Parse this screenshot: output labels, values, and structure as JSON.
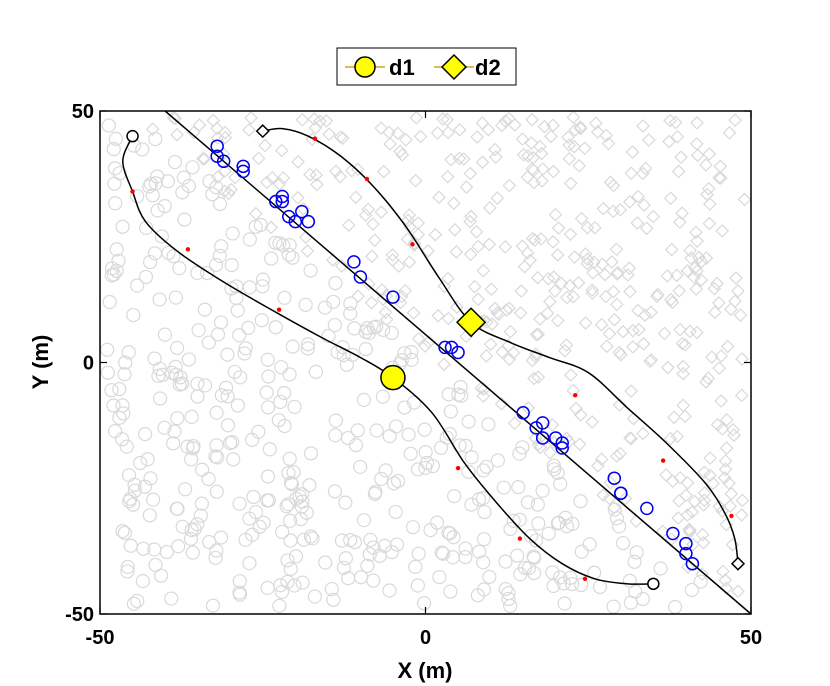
{
  "chart_data": {
    "type": "scatter",
    "xlabel": "X (m)",
    "ylabel": "Y (m)",
    "xlim": [
      -50,
      50
    ],
    "ylim": [
      -50,
      50
    ],
    "x_ticks": [
      -50,
      0,
      50
    ],
    "y_ticks": [
      -50,
      0,
      50
    ],
    "grid": false,
    "legend_position": "top-center, outside plot",
    "legend": [
      {
        "name": "d1",
        "marker": "circle",
        "color": "#ffff00"
      },
      {
        "name": "d2",
        "marker": "diamond",
        "color": "#ffff00"
      }
    ],
    "colors": {
      "background_markers": "#d9d9d9",
      "route_markers": "#0000ee",
      "paths": "#000000",
      "waypoints": "#ff0000",
      "current": "#ffff00"
    },
    "diagonal_line": {
      "x": [
        -40,
        50
      ],
      "y": [
        50,
        -50
      ]
    },
    "route_points": {
      "x": [
        -32,
        -32,
        -31,
        -28,
        -28,
        -23,
        -22,
        -22,
        -21,
        -20,
        -19,
        -18,
        -11,
        -10,
        -5,
        3,
        4,
        5,
        15,
        17,
        18,
        18,
        20,
        21,
        21,
        29,
        30,
        30,
        34,
        38,
        40,
        40,
        41
      ],
      "y": [
        43,
        41,
        40,
        39,
        38,
        32,
        33,
        32,
        29,
        28,
        30,
        28,
        20,
        17,
        13,
        3,
        3,
        2,
        -10,
        -13,
        -12,
        -15,
        -15,
        -16,
        -17,
        -23,
        -26,
        -26,
        -29,
        -34,
        -36,
        -38,
        -40
      ]
    },
    "d1_path": {
      "x": [
        -45,
        -46.5,
        -45,
        -43,
        -38,
        -31,
        -23,
        -16,
        -10,
        -5,
        1,
        6,
        11,
        16,
        21,
        26,
        31,
        35
      ],
      "y": [
        45,
        40,
        34,
        28,
        22,
        16,
        10,
        5,
        1,
        -3,
        -10,
        -20,
        -28,
        -35,
        -40,
        -43,
        -44,
        -44
      ],
      "start": [
        -45,
        45
      ],
      "end": [
        35,
        -44
      ],
      "waypoints": {
        "x": [
          -45,
          -36.5,
          -22.5,
          5,
          14.5,
          24.5
        ],
        "y": [
          34,
          22.5,
          10.5,
          -21,
          -35,
          -43
        ]
      },
      "current": [
        -5,
        -3
      ]
    },
    "d2_path": {
      "x": [
        -25,
        -22,
        -18,
        -13,
        -8,
        -3,
        2,
        7,
        13,
        19,
        25,
        31,
        37,
        43,
        46,
        47.5,
        48
      ],
      "y": [
        46,
        46.5,
        45,
        41,
        35,
        27,
        17,
        8,
        4,
        1,
        -2,
        -9,
        -16,
        -24,
        -30,
        -35,
        -40
      ],
      "start": [
        -25,
        46
      ],
      "end": [
        48,
        -40
      ],
      "waypoints": {
        "x": [
          -17,
          -9,
          -2,
          23,
          36.5,
          47
        ],
        "y": [
          44.5,
          36.5,
          23.5,
          -6.5,
          -19.5,
          -30.5
        ]
      },
      "current": [
        7,
        8
      ]
    }
  }
}
